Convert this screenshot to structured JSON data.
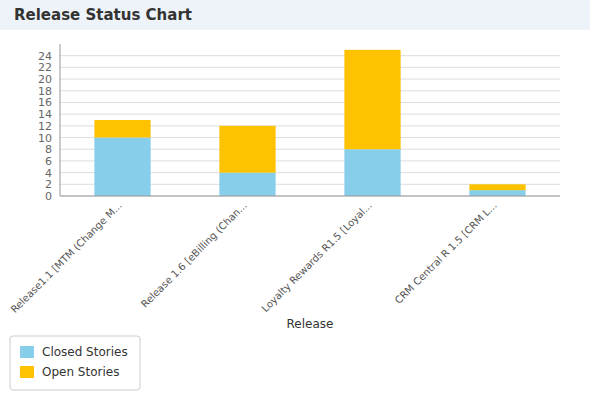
{
  "chart_data": {
    "type": "bar",
    "title": "Release Status Chart",
    "categories": [
      "Release1.1 [MTM (Change M...",
      "Release 1.6 [eBilling (Chan...",
      "Loyalty Rewards R1.5 [Loyal...",
      "CRM Central R 1.5 [CRM L..."
    ],
    "series": [
      {
        "name": "Closed Stories",
        "color": "#87CEEB",
        "values": [
          10,
          4,
          8,
          1
        ]
      },
      {
        "name": "Open Stories",
        "color": "#FFC200",
        "values": [
          3,
          8,
          17,
          1
        ]
      }
    ],
    "xlabel": "Release",
    "ylim": [
      0,
      26
    ],
    "yticks": [
      0,
      2,
      4,
      6,
      8,
      10,
      12,
      14,
      16,
      18,
      20,
      22,
      24
    ],
    "stacked": true,
    "grid": true,
    "legend": "lower left"
  }
}
